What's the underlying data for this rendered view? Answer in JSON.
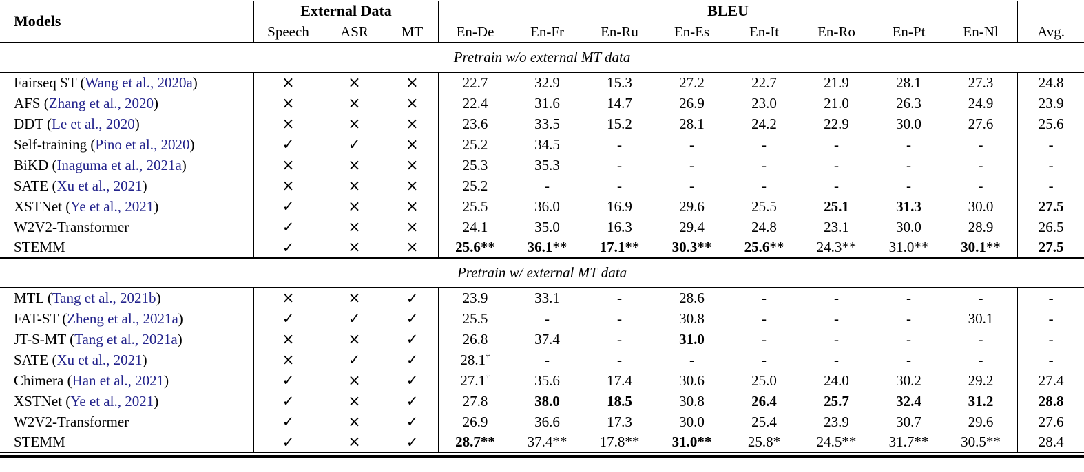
{
  "header": {
    "models_label": "Models",
    "external_data_label": "External Data",
    "external_cols": [
      "Speech",
      "ASR",
      "MT"
    ],
    "bleu_label": "BLEU",
    "bleu_cols": [
      "En-De",
      "En-Fr",
      "En-Ru",
      "En-Es",
      "En-It",
      "En-Ro",
      "En-Pt",
      "En-Nl"
    ],
    "avg_label": "Avg."
  },
  "colors": {
    "citation_blue": "#23238c",
    "text": "#000000"
  },
  "icons": {
    "check": "✓",
    "cross": "×"
  },
  "sections": [
    {
      "title": "Pretrain w/o external MT data",
      "rows": [
        {
          "model": "Fairseq ST",
          "citation": "Wang et al., 2020a",
          "marks": [
            "cross",
            "cross",
            "cross"
          ],
          "scores": [
            {
              "t": "22.7"
            },
            {
              "t": "32.9"
            },
            {
              "t": "15.3"
            },
            {
              "t": "27.2"
            },
            {
              "t": "22.7"
            },
            {
              "t": "21.9"
            },
            {
              "t": "28.1"
            },
            {
              "t": "27.3"
            }
          ],
          "avg": {
            "t": "24.8"
          }
        },
        {
          "model": "AFS",
          "citation": "Zhang et al., 2020",
          "marks": [
            "cross",
            "cross",
            "cross"
          ],
          "scores": [
            {
              "t": "22.4"
            },
            {
              "t": "31.6"
            },
            {
              "t": "14.7"
            },
            {
              "t": "26.9"
            },
            {
              "t": "23.0"
            },
            {
              "t": "21.0"
            },
            {
              "t": "26.3"
            },
            {
              "t": "24.9"
            }
          ],
          "avg": {
            "t": "23.9"
          }
        },
        {
          "model": "DDT",
          "citation": "Le et al., 2020",
          "marks": [
            "cross",
            "cross",
            "cross"
          ],
          "scores": [
            {
              "t": "23.6"
            },
            {
              "t": "33.5"
            },
            {
              "t": "15.2"
            },
            {
              "t": "28.1"
            },
            {
              "t": "24.2"
            },
            {
              "t": "22.9"
            },
            {
              "t": "30.0"
            },
            {
              "t": "27.6"
            }
          ],
          "avg": {
            "t": "25.6"
          }
        },
        {
          "model": "Self-training",
          "citation": "Pino et al., 2020",
          "marks": [
            "check",
            "check",
            "cross"
          ],
          "scores": [
            {
              "t": "25.2"
            },
            {
              "t": "34.5"
            },
            {
              "t": "-"
            },
            {
              "t": "-"
            },
            {
              "t": "-"
            },
            {
              "t": "-"
            },
            {
              "t": "-"
            },
            {
              "t": "-"
            }
          ],
          "avg": {
            "t": "-"
          }
        },
        {
          "model": "BiKD",
          "citation": "Inaguma et al., 2021a",
          "marks": [
            "cross",
            "cross",
            "cross"
          ],
          "scores": [
            {
              "t": "25.3"
            },
            {
              "t": "35.3"
            },
            {
              "t": "-"
            },
            {
              "t": "-"
            },
            {
              "t": "-"
            },
            {
              "t": "-"
            },
            {
              "t": "-"
            },
            {
              "t": "-"
            }
          ],
          "avg": {
            "t": "-"
          }
        },
        {
          "model": "SATE",
          "citation": "Xu et al., 2021",
          "marks": [
            "cross",
            "cross",
            "cross"
          ],
          "scores": [
            {
              "t": "25.2"
            },
            {
              "t": "-"
            },
            {
              "t": "-"
            },
            {
              "t": "-"
            },
            {
              "t": "-"
            },
            {
              "t": "-"
            },
            {
              "t": "-"
            },
            {
              "t": "-"
            }
          ],
          "avg": {
            "t": "-"
          }
        },
        {
          "model": "XSTNet",
          "citation": "Ye et al., 2021",
          "marks": [
            "check",
            "cross",
            "cross"
          ],
          "scores": [
            {
              "t": "25.5"
            },
            {
              "t": "36.0"
            },
            {
              "t": "16.9"
            },
            {
              "t": "29.6"
            },
            {
              "t": "25.5"
            },
            {
              "t": "25.1",
              "b": true
            },
            {
              "t": "31.3",
              "b": true
            },
            {
              "t": "30.0"
            }
          ],
          "avg": {
            "t": "27.5",
            "b": true
          }
        },
        {
          "model": "W2V2-Transformer",
          "citation": null,
          "marks": [
            "check",
            "cross",
            "cross"
          ],
          "scores": [
            {
              "t": "24.1"
            },
            {
              "t": "35.0"
            },
            {
              "t": "16.3"
            },
            {
              "t": "29.4"
            },
            {
              "t": "24.8"
            },
            {
              "t": "23.1"
            },
            {
              "t": "30.0"
            },
            {
              "t": "28.9"
            }
          ],
          "avg": {
            "t": "26.5"
          }
        },
        {
          "model": "STEMM",
          "citation": null,
          "marks": [
            "check",
            "cross",
            "cross"
          ],
          "scores": [
            {
              "t": "25.6**",
              "b": true
            },
            {
              "t": "36.1**",
              "b": true
            },
            {
              "t": "17.1**",
              "b": true
            },
            {
              "t": "30.3**",
              "b": true
            },
            {
              "t": "25.6**",
              "b": true
            },
            {
              "t": "24.3**"
            },
            {
              "t": "31.0**"
            },
            {
              "t": "30.1**",
              "b": true
            }
          ],
          "avg": {
            "t": "27.5",
            "b": true
          }
        }
      ]
    },
    {
      "title": "Pretrain w/ external MT data",
      "rows": [
        {
          "model": "MTL",
          "citation": "Tang et al., 2021b",
          "marks": [
            "cross",
            "cross",
            "check"
          ],
          "scores": [
            {
              "t": "23.9"
            },
            {
              "t": "33.1"
            },
            {
              "t": "-"
            },
            {
              "t": "28.6"
            },
            {
              "t": "-"
            },
            {
              "t": "-"
            },
            {
              "t": "-"
            },
            {
              "t": "-"
            }
          ],
          "avg": {
            "t": "-"
          }
        },
        {
          "model": "FAT-ST",
          "citation": "Zheng et al., 2021a",
          "marks": [
            "check",
            "check",
            "check"
          ],
          "scores": [
            {
              "t": "25.5"
            },
            {
              "t": "-"
            },
            {
              "t": "-"
            },
            {
              "t": "30.8"
            },
            {
              "t": "-"
            },
            {
              "t": "-"
            },
            {
              "t": "-"
            },
            {
              "t": "30.1"
            }
          ],
          "avg": {
            "t": "-"
          }
        },
        {
          "model": "JT-S-MT",
          "citation": "Tang et al., 2021a",
          "marks": [
            "cross",
            "cross",
            "check"
          ],
          "scores": [
            {
              "t": "26.8"
            },
            {
              "t": "37.4"
            },
            {
              "t": "-"
            },
            {
              "t": "31.0",
              "b": true
            },
            {
              "t": "-"
            },
            {
              "t": "-"
            },
            {
              "t": "-"
            },
            {
              "t": "-"
            }
          ],
          "avg": {
            "t": "-"
          }
        },
        {
          "model": "SATE",
          "citation": "Xu et al., 2021",
          "marks": [
            "cross",
            "check",
            "check"
          ],
          "scores": [
            {
              "t": "28.1",
              "sup": "†"
            },
            {
              "t": "-"
            },
            {
              "t": "-"
            },
            {
              "t": "-"
            },
            {
              "t": "-"
            },
            {
              "t": "-"
            },
            {
              "t": "-"
            },
            {
              "t": "-"
            }
          ],
          "avg": {
            "t": "-"
          }
        },
        {
          "model": "Chimera",
          "citation": "Han et al., 2021",
          "marks": [
            "check",
            "cross",
            "check"
          ],
          "scores": [
            {
              "t": "27.1",
              "sup": "†"
            },
            {
              "t": "35.6"
            },
            {
              "t": "17.4"
            },
            {
              "t": "30.6"
            },
            {
              "t": "25.0"
            },
            {
              "t": "24.0"
            },
            {
              "t": "30.2"
            },
            {
              "t": "29.2"
            }
          ],
          "avg": {
            "t": "27.4"
          }
        },
        {
          "model": "XSTNet",
          "citation": "Ye et al., 2021",
          "marks": [
            "check",
            "cross",
            "check"
          ],
          "scores": [
            {
              "t": "27.8"
            },
            {
              "t": "38.0",
              "b": true
            },
            {
              "t": "18.5",
              "b": true
            },
            {
              "t": "30.8"
            },
            {
              "t": "26.4",
              "b": true
            },
            {
              "t": "25.7",
              "b": true
            },
            {
              "t": "32.4",
              "b": true
            },
            {
              "t": "31.2",
              "b": true
            }
          ],
          "avg": {
            "t": "28.8",
            "b": true
          }
        },
        {
          "model": "W2V2-Transformer",
          "citation": null,
          "marks": [
            "check",
            "cross",
            "check"
          ],
          "scores": [
            {
              "t": "26.9"
            },
            {
              "t": "36.6"
            },
            {
              "t": "17.3"
            },
            {
              "t": "30.0"
            },
            {
              "t": "25.4"
            },
            {
              "t": "23.9"
            },
            {
              "t": "30.7"
            },
            {
              "t": "29.6"
            }
          ],
          "avg": {
            "t": "27.6"
          }
        },
        {
          "model": "STEMM",
          "citation": null,
          "marks": [
            "check",
            "cross",
            "check"
          ],
          "scores": [
            {
              "t": "28.7**",
              "b": true
            },
            {
              "t": "37.4**"
            },
            {
              "t": "17.8**"
            },
            {
              "t": "31.0**",
              "b": true
            },
            {
              "t": "25.8*"
            },
            {
              "t": "24.5**"
            },
            {
              "t": "31.7**"
            },
            {
              "t": "30.5**"
            }
          ],
          "avg": {
            "t": "28.4"
          }
        }
      ]
    }
  ]
}
